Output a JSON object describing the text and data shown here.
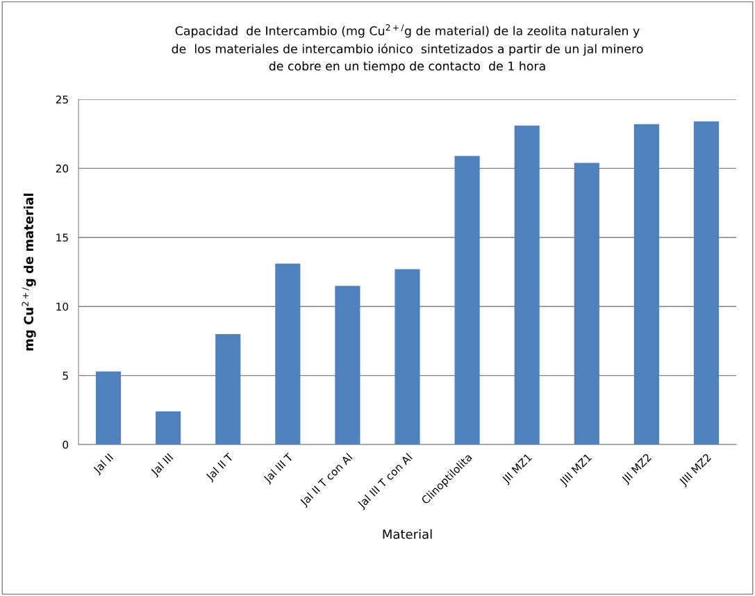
{
  "chart_data": {
    "type": "bar",
    "title": "Capacidad  de Intercambio (mg Cu$^{2+/}$g de material) de la zeolita naturalen y\nde  los materiales de intercambio iónico  sintetizados a partir de un jal minero\nde cobre en un tiempo de contacto  de 1 hora",
    "xlabel": "Material",
    "ylabel": "mg Cu$^{2+/}$g de material",
    "categories": [
      "Jal II",
      "Jal III",
      "Jal II T",
      "Jal III T",
      "Jal II T con Al",
      "Jal III T con Al",
      "Clinoptilolita",
      "JII MZ1",
      "JIII MZ1",
      "JII MZ2",
      "JIII MZ2"
    ],
    "series": [
      {
        "color": "#4f81bd",
        "values": [
          5.3,
          2.4,
          8.0,
          13.1,
          11.5,
          12.7,
          20.9,
          23.1,
          20.4,
          23.2,
          23.4
        ]
      }
    ],
    "ylim": [
      0,
      25
    ],
    "yticks": [
      0,
      5,
      10,
      15,
      20,
      25
    ],
    "grid": "y"
  }
}
